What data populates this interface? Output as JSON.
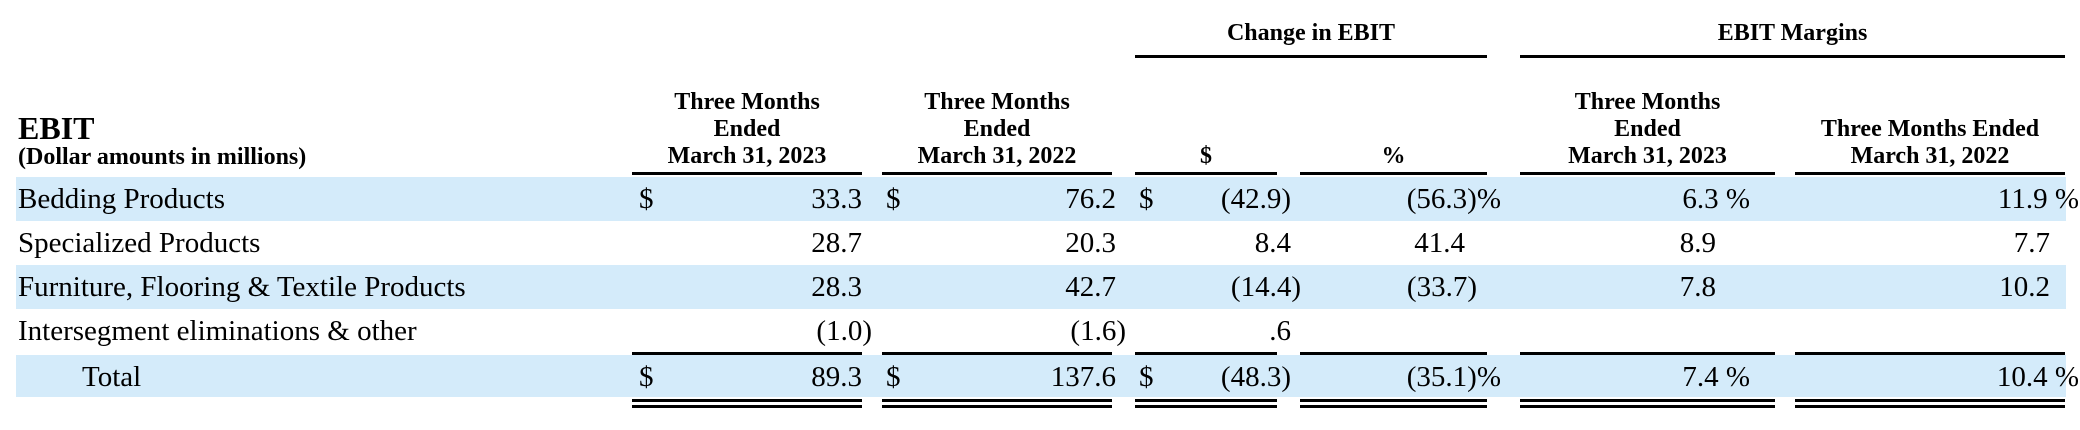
{
  "header": {
    "title": "EBIT",
    "subtitle": "(Dollar amounts in millions)",
    "groups": [
      "Change in EBIT",
      "EBIT Margins"
    ],
    "columns": [
      [
        "Three Months",
        "Ended",
        "March 31, 2023"
      ],
      [
        "Three Months",
        "Ended",
        "March 31, 2022"
      ],
      [
        "$"
      ],
      [
        "%"
      ],
      [
        "Three Months",
        "Ended",
        "March 31, 2023"
      ],
      [
        "Three Months Ended",
        "March 31, 2022"
      ]
    ]
  },
  "rows": [
    {
      "label": "Bedding Products",
      "d1": "$",
      "v1": "33.3",
      "d2": "$",
      "v2": "76.2",
      "d3": "$",
      "v3": "(42.9)",
      "v4": "(56.3)%",
      "v5": "6.3 %",
      "v6": "11.9 %"
    },
    {
      "label": "Specialized Products",
      "d1": "",
      "v1": "28.7",
      "d2": "",
      "v2": "20.3",
      "d3": "",
      "v3": "8.4",
      "v4": "41.4",
      "v5": "8.9",
      "v6": "7.7"
    },
    {
      "label": "Furniture, Flooring & Textile Products",
      "d1": "",
      "v1": "28.3",
      "d2": "",
      "v2": "42.7",
      "d3": "",
      "v3": "(14.4)",
      "v4": "(33.7)",
      "v5": "7.8",
      "v6": "10.2"
    },
    {
      "label": "Intersegment eliminations & other",
      "d1": "",
      "v1": "(1.0)",
      "d2": "",
      "v2": "(1.6)",
      "d3": "",
      "v3": ".6",
      "v4": "",
      "v5": "",
      "v6": ""
    },
    {
      "label": "Total",
      "d1": "$",
      "v1": "89.3",
      "d2": "$",
      "v2": "137.6",
      "d3": "$",
      "v3": "(48.3)",
      "v4": "(35.1)%",
      "v5": "7.4 %",
      "v6": "10.4 %"
    }
  ]
}
